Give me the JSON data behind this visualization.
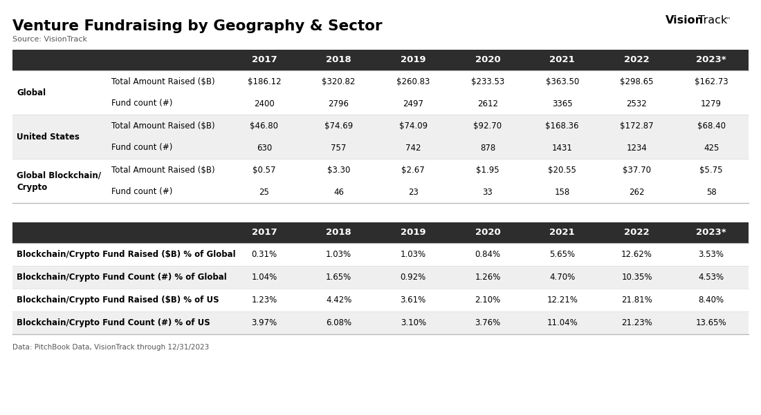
{
  "title": "Venture Fundraising by Geography & Sector",
  "source": "Source: VisionTrack",
  "footer": "Data: PitchBook Data, VisionTrack through 12/31/2023",
  "years": [
    "2017",
    "2018",
    "2019",
    "2020",
    "2021",
    "2022",
    "2023*"
  ],
  "header_bg": "#2d2d2d",
  "header_color": "#ffffff",
  "row_bg_odd": "#ffffff",
  "row_bg_even": "#efefef",
  "border_color": "#bbbbbb",
  "sep_color": "#dddddd",
  "table1_sections": [
    {
      "label": "Global",
      "rows": [
        {
          "metric": "Total Amount Raised ($B)",
          "values": [
            "$186.12",
            "$320.82",
            "$260.83",
            "$233.53",
            "$363.50",
            "$298.65",
            "$162.73"
          ]
        },
        {
          "metric": "Fund count (#)",
          "values": [
            "2400",
            "2796",
            "2497",
            "2612",
            "3365",
            "2532",
            "1279"
          ]
        }
      ]
    },
    {
      "label": "United States",
      "rows": [
        {
          "metric": "Total Amount Raised ($B)",
          "values": [
            "$46.80",
            "$74.69",
            "$74.09",
            "$92.70",
            "$168.36",
            "$172.87",
            "$68.40"
          ]
        },
        {
          "metric": "Fund count (#)",
          "values": [
            "630",
            "757",
            "742",
            "878",
            "1431",
            "1234",
            "425"
          ]
        }
      ]
    },
    {
      "label": "Global Blockchain/\nCrypto",
      "rows": [
        {
          "metric": "Total Amount Raised ($B)",
          "values": [
            "$0.57",
            "$3.30",
            "$2.67",
            "$1.95",
            "$20.55",
            "$37.70",
            "$5.75"
          ]
        },
        {
          "metric": "Fund count (#)",
          "values": [
            "25",
            "46",
            "23",
            "33",
            "158",
            "262",
            "58"
          ]
        }
      ]
    }
  ],
  "table2_rows": [
    {
      "label": "Blockchain/Crypto Fund Raised ($B) % of Global",
      "values": [
        "0.31%",
        "1.03%",
        "1.03%",
        "0.84%",
        "5.65%",
        "12.62%",
        "3.53%"
      ]
    },
    {
      "label": "Blockchain/Crypto Fund Count (#) % of Global",
      "values": [
        "1.04%",
        "1.65%",
        "0.92%",
        "1.26%",
        "4.70%",
        "10.35%",
        "4.53%"
      ]
    },
    {
      "label": "Blockchain/Crypto Fund Raised ($B) % of US",
      "values": [
        "1.23%",
        "4.42%",
        "3.61%",
        "2.10%",
        "12.21%",
        "21.81%",
        "8.40%"
      ]
    },
    {
      "label": "Blockchain/Crypto Fund Count (#) % of US",
      "values": [
        "3.97%",
        "6.08%",
        "3.10%",
        "3.76%",
        "11.04%",
        "21.23%",
        "13.65%"
      ]
    }
  ]
}
